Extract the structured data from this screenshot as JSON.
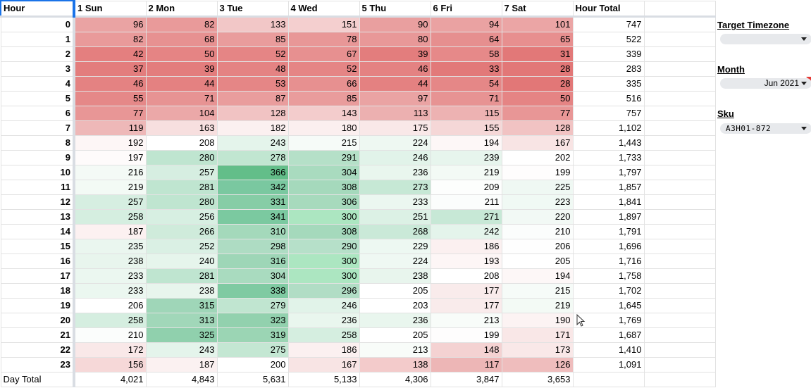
{
  "headers": [
    "Hour",
    "1 Sun",
    "2 Mon",
    "3 Tue",
    "4 Wed",
    "5 Thu",
    "6 Fri",
    "7 Sat",
    "Hour Total"
  ],
  "rows": [
    {
      "hour": "0",
      "values": [
        "96",
        "82",
        "133",
        "151",
        "90",
        "94",
        "101"
      ],
      "total": "747",
      "colors": [
        "#eaa3a3",
        "#e99a9a",
        "#f2c7c7",
        "#f4cfcf",
        "#e99f9f",
        "#eaa2a2",
        "#eba5a5"
      ]
    },
    {
      "hour": "1",
      "values": [
        "82",
        "68",
        "85",
        "78",
        "80",
        "64",
        "65"
      ],
      "total": "522",
      "colors": [
        "#e99a9a",
        "#e79191",
        "#e99c9c",
        "#e89797",
        "#e89898",
        "#e68f8f",
        "#e78f8f"
      ]
    },
    {
      "hour": "2",
      "values": [
        "42",
        "50",
        "52",
        "67",
        "39",
        "58",
        "31"
      ],
      "total": "339",
      "colors": [
        "#e47f7f",
        "#e58484",
        "#e58585",
        "#e79090",
        "#e37d7d",
        "#e68989",
        "#e27878"
      ]
    },
    {
      "hour": "3",
      "values": [
        "37",
        "39",
        "48",
        "52",
        "46",
        "33",
        "28"
      ],
      "total": "283",
      "colors": [
        "#e37d7d",
        "#e37d7d",
        "#e48383",
        "#e58585",
        "#e48282",
        "#e27979",
        "#e27777"
      ]
    },
    {
      "hour": "4",
      "values": [
        "46",
        "44",
        "53",
        "66",
        "44",
        "54",
        "28"
      ],
      "total": "335",
      "colors": [
        "#e48282",
        "#e48181",
        "#e58686",
        "#e79090",
        "#e48181",
        "#e58787",
        "#e27777"
      ]
    },
    {
      "hour": "5",
      "values": [
        "55",
        "71",
        "87",
        "85",
        "97",
        "71",
        "50"
      ],
      "total": "516",
      "colors": [
        "#e58888",
        "#e79393",
        "#e99d9d",
        "#e99c9c",
        "#eaa3a3",
        "#e79393",
        "#e58484"
      ]
    },
    {
      "hour": "6",
      "values": [
        "77",
        "104",
        "128",
        "143",
        "113",
        "115",
        "77"
      ],
      "total": "757",
      "colors": [
        "#e89696",
        "#eba8a8",
        "#f1c3c3",
        "#f3cccc",
        "#ecb0b0",
        "#edb2b2",
        "#e89696"
      ]
    },
    {
      "hour": "7",
      "values": [
        "119",
        "163",
        "182",
        "180",
        "175",
        "155",
        "128"
      ],
      "total": "1,102",
      "colors": [
        "#eeb8b8",
        "#f7dfdf",
        "#fbf0f0",
        "#fbefef",
        "#f9e8e8",
        "#f5d7d7",
        "#f1c3c3"
      ]
    },
    {
      "hour": "8",
      "values": [
        "192",
        "208",
        "243",
        "215",
        "224",
        "194",
        "167"
      ],
      "total": "1,443",
      "colors": [
        "#fdf6f6",
        "#ffffff",
        "#e4f4eb",
        "#f6fbf8",
        "#eef8f2",
        "#fdf7f7",
        "#f8e4e4"
      ]
    },
    {
      "hour": "9",
      "values": [
        "197",
        "280",
        "278",
        "291",
        "246",
        "239",
        "202"
      ],
      "total": "1,733",
      "colors": [
        "#fefbfb",
        "#bfe5d0",
        "#c1e6d1",
        "#b5e0c8",
        "#e1f3e9",
        "#e7f5ed",
        "#ffffff"
      ]
    },
    {
      "hour": "10",
      "values": [
        "216",
        "257",
        "366",
        "304",
        "236",
        "219",
        "199"
      ],
      "total": "1,797",
      "colors": [
        "#f4faf6",
        "#d6eee1",
        "#63be89",
        "#a9dbbf",
        "#e9f6ee",
        "#f3faf5",
        "#fefdfd"
      ]
    },
    {
      "hour": "11",
      "values": [
        "219",
        "281",
        "342",
        "308",
        "273",
        "209",
        "225"
      ],
      "total": "1,857",
      "colors": [
        "#f3faf5",
        "#bfe5d0",
        "#7ac8a0",
        "#a5d9bc",
        "#c6e8d5",
        "#fdfefd",
        "#eff8f3"
      ]
    },
    {
      "hour": "12",
      "values": [
        "257",
        "280",
        "331",
        "306",
        "233",
        "211",
        "223"
      ],
      "total": "1,841",
      "colors": [
        "#d6eee1",
        "#bfe5d0",
        "#86cda6",
        "#a7dabd",
        "#ebf7f0",
        "#fbfdfc",
        "#f0f9f4"
      ]
    },
    {
      "hour": "13",
      "values": [
        "258",
        "256",
        "341",
        "300",
        "251",
        "271",
        "220"
      ],
      "total": "1,897",
      "colors": [
        "#d5eee0",
        "#d7efe2",
        "#7bc9a0",
        "#ace6c1",
        "#dcf1e5",
        "#c7e8d6",
        "#f2f9f5"
      ]
    },
    {
      "hour": "14",
      "values": [
        "187",
        "266",
        "310",
        "308",
        "268",
        "242",
        "210"
      ],
      "total": "1,791",
      "colors": [
        "#fcf1f1",
        "#cfebdb",
        "#a4d9bb",
        "#a5d9bc",
        "#cae9d8",
        "#e4f4eb",
        "#fbfdfc"
      ]
    },
    {
      "hour": "15",
      "values": [
        "235",
        "252",
        "298",
        "290",
        "229",
        "186",
        "206"
      ],
      "total": "1,696",
      "colors": [
        "#eaf6ef",
        "#daf0e4",
        "#aedcc3",
        "#b6e0c9",
        "#edf8f2",
        "#fbf0f0",
        "#fefefe"
      ]
    },
    {
      "hour": "16",
      "values": [
        "238",
        "240",
        "316",
        "300",
        "224",
        "193",
        "205"
      ],
      "total": "1,716",
      "colors": [
        "#e8f5ed",
        "#e6f5ec",
        "#9ed6b7",
        "#ace6c1",
        "#eff8f3",
        "#fdf6f6",
        "#ffffff"
      ]
    },
    {
      "hour": "17",
      "values": [
        "233",
        "281",
        "304",
        "300",
        "238",
        "208",
        "194"
      ],
      "total": "1,758",
      "colors": [
        "#ebf7f0",
        "#bfe5d0",
        "#a9dbbf",
        "#ace6c1",
        "#e8f5ed",
        "#ffffff",
        "#fdf7f7"
      ]
    },
    {
      "hour": "18",
      "values": [
        "233",
        "238",
        "338",
        "296",
        "205",
        "177",
        "215"
      ],
      "total": "1,702",
      "colors": [
        "#ebf7f0",
        "#e8f5ed",
        "#7fcaa2",
        "#b1ddc5",
        "#ffffff",
        "#f9ebeb",
        "#f6fbf8"
      ]
    },
    {
      "hour": "19",
      "values": [
        "206",
        "315",
        "279",
        "246",
        "203",
        "177",
        "219"
      ],
      "total": "1,645",
      "colors": [
        "#ffffff",
        "#9fd6b8",
        "#c0e5d0",
        "#e1f3e9",
        "#ffffff",
        "#f9ebeb",
        "#f3faf5"
      ]
    },
    {
      "hour": "20",
      "values": [
        "258",
        "313",
        "323",
        "236",
        "236",
        "213",
        "190"
      ],
      "total": "1,769",
      "colors": [
        "#d5eee0",
        "#a1d7b9",
        "#92d1ae",
        "#e9f6ee",
        "#e9f6ee",
        "#f8fcf9",
        "#fcf3f3"
      ]
    },
    {
      "hour": "21",
      "values": [
        "210",
        "325",
        "319",
        "258",
        "205",
        "199",
        "171"
      ],
      "total": "1,687",
      "colors": [
        "#fbfdfc",
        "#90d0ad",
        "#9bd5b4",
        "#d5eee0",
        "#ffffff",
        "#fefdfd",
        "#f9e7e7"
      ]
    },
    {
      "hour": "22",
      "values": [
        "172",
        "243",
        "275",
        "186",
        "213",
        "148",
        "173"
      ],
      "total": "1,410",
      "colors": [
        "#f9e8e8",
        "#e4f4eb",
        "#c4e7d3",
        "#fbf0f0",
        "#f8fcf9",
        "#f4d2d2",
        "#f9e8e8"
      ]
    },
    {
      "hour": "23",
      "values": [
        "156",
        "187",
        "200",
        "167",
        "138",
        "117",
        "126"
      ],
      "total": "1,091",
      "colors": [
        "#f6d8d8",
        "#fbf1f1",
        "#ffffff",
        "#f8e4e4",
        "#f3cbcb",
        "#edb6b6",
        "#efbdbd"
      ]
    }
  ],
  "footer": {
    "label": "Day Total",
    "values": [
      "4,021",
      "4,843",
      "5,631",
      "5,133",
      "4,306",
      "3,847",
      "3,653"
    ]
  },
  "sidebar": {
    "target_timezone": {
      "label": "Target Timezone",
      "value": ""
    },
    "month": {
      "label": "Month",
      "value": "Jun 2021"
    },
    "sku": {
      "label": "Sku",
      "value": "A3H01-872"
    }
  },
  "colors": {
    "selection": "#1a73e8",
    "header_divider": "#d9dde3",
    "dropdown_bg": "#e7e9ec",
    "note_marker": "#e53935"
  }
}
